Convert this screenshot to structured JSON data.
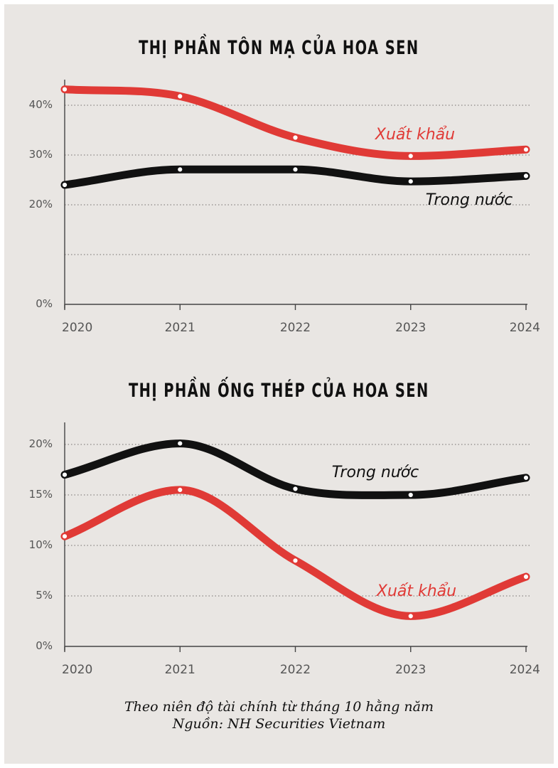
{
  "chart_data": [
    {
      "type": "line",
      "title": "THỊ PHẦN TÔN MẠ CỦA HOA SEN",
      "categories": [
        "2020",
        "2021",
        "2022",
        "2023",
        "2024"
      ],
      "y_ticks": [
        "0%",
        "",
        "20%",
        "30%",
        "40%"
      ],
      "y_tick_values": [
        0,
        10,
        20,
        30,
        40
      ],
      "ylim": [
        0,
        45
      ],
      "grid": true,
      "series": [
        {
          "name": "Xuất khẩu",
          "color": "#e03a36",
          "values": [
            43.2,
            41.8,
            33.5,
            29.8,
            31.1
          ]
        },
        {
          "name": "Trong nước",
          "color": "#111111",
          "values": [
            24.0,
            27.1,
            27.1,
            24.7,
            25.8
          ]
        }
      ]
    },
    {
      "type": "line",
      "title": "THỊ PHẦN ỐNG THÉP CỦA HOA SEN",
      "categories": [
        "2020",
        "2021",
        "2022",
        "2023",
        "2024"
      ],
      "y_ticks": [
        "0%",
        "5%",
        "10%",
        "15%",
        "20%"
      ],
      "y_tick_values": [
        0,
        5,
        10,
        15,
        20
      ],
      "ylim": [
        0,
        22
      ],
      "grid": true,
      "series": [
        {
          "name": "Trong nước",
          "color": "#111111",
          "values": [
            17.0,
            20.1,
            15.6,
            15.0,
            16.7
          ]
        },
        {
          "name": "Xuất khẩu",
          "color": "#e03a36",
          "values": [
            10.9,
            15.5,
            8.5,
            3.0,
            6.9
          ]
        }
      ]
    }
  ],
  "footnote": {
    "line1": "Theo niên độ tài chính từ tháng 10 hằng năm",
    "line2": "Nguồn: NH Securities Vietnam"
  }
}
